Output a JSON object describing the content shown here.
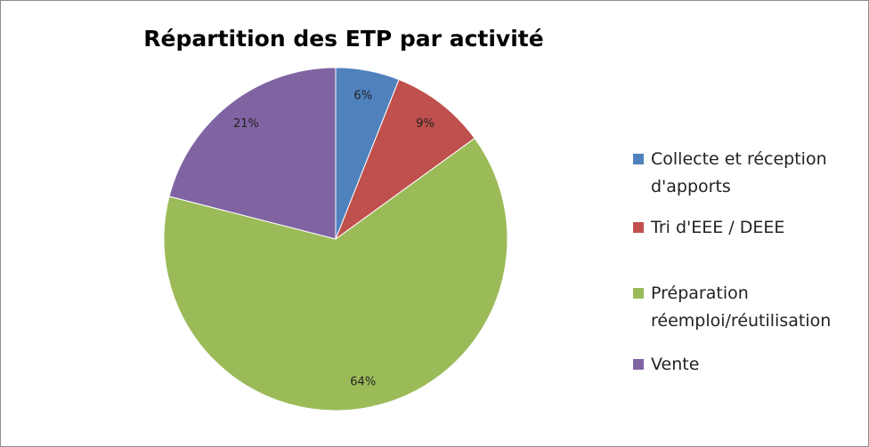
{
  "chart_data": {
    "type": "pie",
    "title": "Répartition des ETP par activité",
    "categories": [
      "Collecte et réception d'apports",
      "Tri d'EEE / DEEE",
      "Préparation réemploi/réutilisation",
      "Vente"
    ],
    "values": [
      6,
      9,
      64,
      21
    ],
    "value_labels": [
      "6%",
      "9%",
      "64%",
      "21%"
    ],
    "colors": [
      "#4f81bd",
      "#c0504d",
      "#9bbb59",
      "#8064a2"
    ],
    "legend": "right"
  }
}
